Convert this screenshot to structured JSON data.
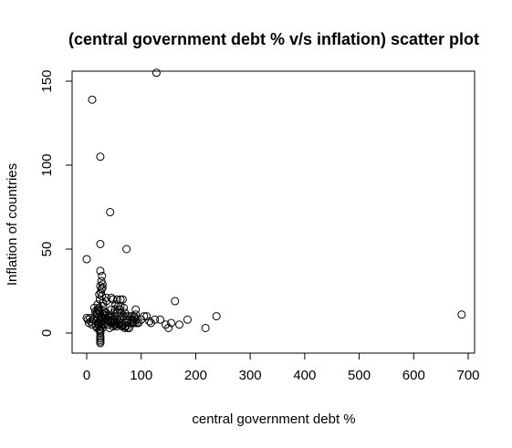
{
  "chart_data": {
    "type": "scatter",
    "title": "(central government debt % v/s inflation) scatter plot",
    "xlabel": "central government debt %",
    "ylabel": "Inflation of countries",
    "xlim": [
      0,
      700
    ],
    "ylim": [
      0,
      150
    ],
    "xticks": [
      "0",
      "100",
      "200",
      "300",
      "400",
      "500",
      "600",
      "700"
    ],
    "yticks": [
      "0",
      "50",
      "100",
      "150"
    ],
    "grid": false,
    "legend": "none",
    "marker": "open-circle",
    "series": [
      {
        "x": [
          128,
          10,
          25,
          43,
          25,
          73,
          0,
          25,
          28,
          27,
          25,
          29,
          45,
          48,
          56,
          62,
          66,
          53,
          58,
          62,
          45,
          52,
          60,
          68,
          50,
          55,
          63,
          70,
          40,
          42,
          47,
          52,
          57,
          62,
          67,
          72,
          77,
          82,
          87,
          90,
          75,
          80,
          85,
          90,
          85,
          88,
          92,
          95,
          100,
          105,
          110,
          115,
          118,
          125,
          135,
          145,
          150,
          155,
          162,
          170,
          185,
          218,
          238,
          688,
          0,
          2,
          4,
          6,
          8,
          10,
          12,
          15,
          18,
          20,
          22,
          25,
          27,
          30,
          32,
          35,
          38,
          40,
          14,
          16,
          18,
          20,
          22,
          24,
          26,
          28,
          30,
          32,
          34,
          36,
          17,
          19,
          21,
          23,
          25,
          27,
          29,
          31,
          25,
          25,
          25,
          25,
          25,
          25,
          25,
          25,
          26,
          27,
          28,
          29,
          23,
          24,
          20,
          20,
          22,
          22,
          30,
          30,
          33,
          33,
          36,
          36,
          40,
          45,
          50,
          55,
          60,
          65,
          70,
          75,
          42,
          48,
          54,
          58,
          64,
          68,
          72,
          78,
          82,
          88,
          50,
          55,
          60,
          65,
          70,
          85,
          90,
          30,
          35,
          40,
          45,
          50
        ],
        "y": [
          155,
          139,
          105,
          72,
          53,
          50,
          44,
          37,
          34,
          31,
          28,
          29,
          21,
          20,
          20,
          20,
          20,
          17,
          16,
          16,
          14,
          14,
          14,
          15,
          12,
          12,
          12,
          12,
          10,
          10,
          10,
          10,
          10,
          10,
          10,
          10,
          10,
          10,
          10,
          14,
          8,
          8,
          8,
          8,
          6,
          6,
          6,
          6,
          8,
          10,
          10,
          7,
          6,
          8,
          8,
          5,
          3,
          6,
          19,
          5,
          8,
          3,
          10,
          11,
          9,
          8,
          6,
          9,
          7,
          5,
          8,
          10,
          7,
          9,
          6,
          8,
          5,
          7,
          9,
          6,
          8,
          5,
          15,
          13,
          12,
          11,
          14,
          12,
          10,
          9,
          11,
          13,
          10,
          12,
          4,
          3,
          5,
          2,
          6,
          4,
          3,
          5,
          2,
          0,
          -2,
          -3,
          -4,
          -5,
          -6,
          1,
          24,
          26,
          22,
          27,
          23,
          20,
          17,
          14,
          15,
          13,
          18,
          16,
          12,
          11,
          19,
          21,
          7,
          6,
          5,
          4,
          6,
          5,
          4,
          3,
          3,
          4,
          5,
          7,
          6,
          5,
          4,
          3,
          6,
          9,
          7,
          6,
          5,
          4,
          3,
          7,
          11,
          11,
          9,
          8,
          7,
          6
        ]
      }
    ]
  }
}
